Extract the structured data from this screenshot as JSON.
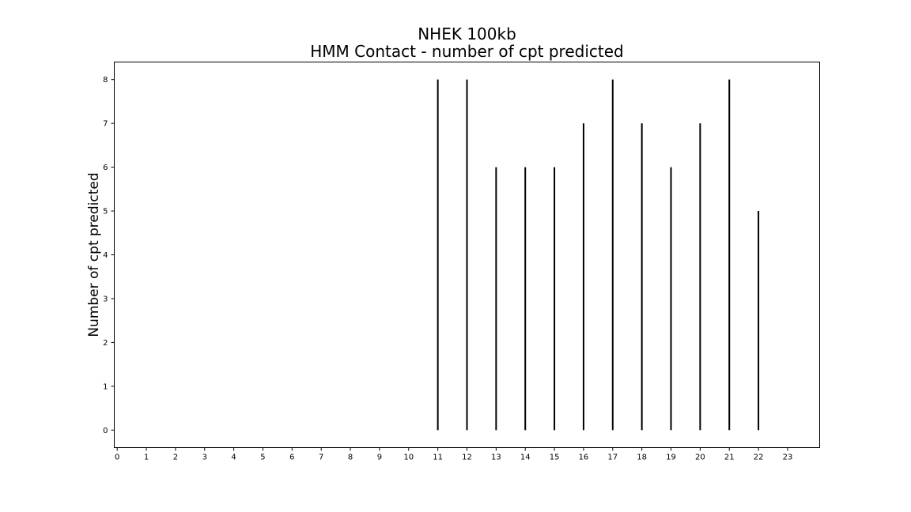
{
  "chart_data": {
    "type": "bar",
    "title": "NHEK 100kb",
    "subtitle": "HMM Contact - number of cpt predicted",
    "xlabel": "",
    "ylabel": "Number of cpt predicted",
    "x": [
      11,
      12,
      13,
      14,
      15,
      16,
      17,
      18,
      19,
      20,
      21,
      22
    ],
    "values": [
      8,
      8,
      6,
      6,
      6,
      7,
      8,
      7,
      6,
      7,
      8,
      5
    ],
    "xticks": [
      "0",
      "1",
      "2",
      "3",
      "4",
      "5",
      "6",
      "7",
      "8",
      "9",
      "10",
      "11",
      "12",
      "13",
      "14",
      "15",
      "16",
      "17",
      "18",
      "19",
      "20",
      "21",
      "22",
      "23"
    ],
    "yticks": [
      "0",
      "1",
      "2",
      "3",
      "4",
      "5",
      "6",
      "7",
      "8"
    ],
    "xlim": [
      -0.1,
      24.1
    ],
    "ylim": [
      -0.4,
      8.4
    ],
    "grid": false,
    "legend": "none",
    "bar_color": "#000000"
  }
}
